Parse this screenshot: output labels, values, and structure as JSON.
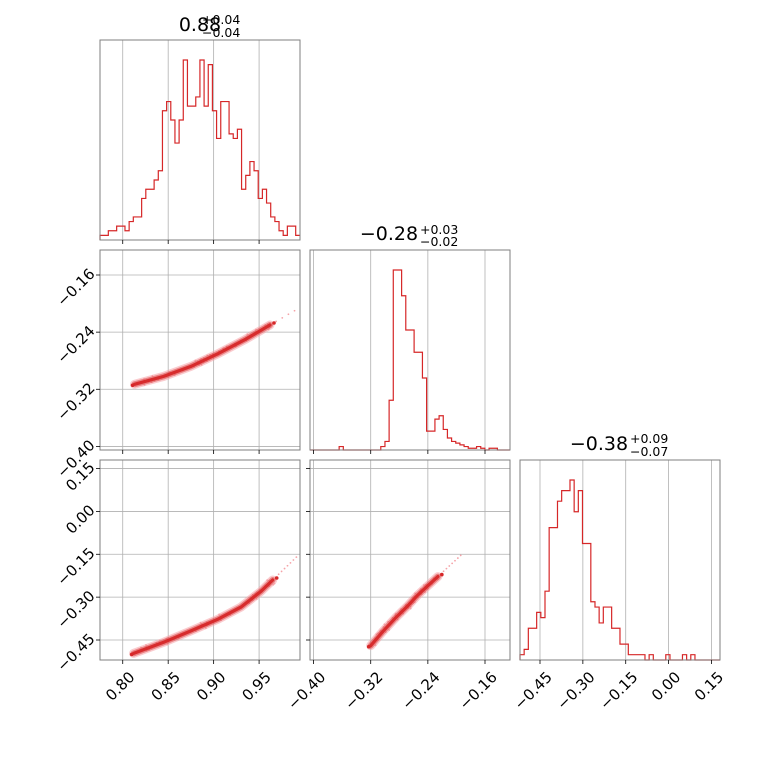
{
  "colors": {
    "series": "#d62728",
    "light": "#f5a3a8",
    "frame": "#7f7f7f",
    "grid": "#b0b0b0"
  },
  "chart_data": {
    "type": "corner",
    "grid": true,
    "titles": [
      {
        "median": "0.88",
        "plus": "+0.04",
        "minus": "−0.04"
      },
      {
        "median": "−0.28",
        "plus": "+0.03",
        "minus": "−0.02"
      },
      {
        "median": "−0.38",
        "plus": "+0.09",
        "minus": "−0.07"
      }
    ],
    "params": [
      {
        "range": [
          0.775,
          0.995
        ],
        "ticks": [
          0.8,
          0.85,
          0.9,
          0.95
        ],
        "tick_labels": [
          "0.80",
          "0.85",
          "0.90",
          "0.95"
        ]
      },
      {
        "range": [
          -0.405,
          -0.125
        ],
        "ticks": [
          -0.4,
          -0.32,
          -0.24,
          -0.16
        ],
        "tick_labels": [
          "−0.40",
          "−0.32",
          "−0.24",
          "−0.16"
        ]
      },
      {
        "range": [
          -0.52,
          0.18
        ],
        "ticks": [
          -0.45,
          -0.3,
          -0.15,
          0.0,
          0.15
        ],
        "tick_labels": [
          "−0.45",
          "−0.30",
          "−0.15",
          "0.00",
          "0.15"
        ]
      }
    ],
    "histograms": [
      {
        "param": 0,
        "bin_start": 0.775,
        "bin_width": 0.00458,
        "counts": [
          1,
          1,
          2,
          2,
          3,
          3,
          2,
          4,
          5,
          5,
          9,
          11,
          11,
          13,
          15,
          28,
          30,
          26,
          21,
          26,
          39,
          29,
          29,
          31,
          39,
          29,
          38,
          28,
          22,
          30,
          30,
          23,
          22,
          24,
          11,
          14,
          17,
          15,
          9,
          11,
          8,
          5,
          4,
          2,
          1,
          3,
          3,
          1
        ]
      },
      {
        "param": 1,
        "bin_start": -0.405,
        "bin_width": 0.00583,
        "counts": [
          0,
          0,
          0,
          0,
          0,
          0,
          0,
          2,
          0,
          0,
          0,
          0,
          0,
          0,
          0,
          0,
          0,
          2,
          5,
          29,
          105,
          105,
          90,
          70,
          70,
          57,
          57,
          42,
          11,
          11,
          18,
          20,
          12,
          7,
          5,
          4,
          3,
          2,
          1,
          1,
          2,
          1,
          0,
          1,
          1,
          0,
          0,
          0
        ]
      },
      {
        "param": 2,
        "bin_start": -0.52,
        "bin_width": 0.01458,
        "counts": [
          1,
          2,
          6,
          6,
          9,
          8,
          13,
          25,
          25,
          30,
          32,
          32,
          34,
          28,
          32,
          22,
          22,
          11,
          10,
          7,
          10,
          10,
          6,
          6,
          3,
          3,
          1,
          1,
          1,
          1,
          0,
          1,
          0,
          0,
          0,
          1,
          0,
          0,
          0,
          1,
          0,
          1,
          0,
          0,
          0,
          0,
          0,
          0
        ]
      }
    ],
    "scatter_panels": [
      {
        "x_param": 0,
        "y_param": 1,
        "curve": [
          [
            0.813,
            -0.313
          ],
          [
            0.845,
            -0.302
          ],
          [
            0.875,
            -0.288
          ],
          [
            0.905,
            -0.27
          ],
          [
            0.935,
            -0.25
          ],
          [
            0.962,
            -0.23
          ]
        ]
      },
      {
        "x_param": 0,
        "y_param": 2,
        "curve": [
          [
            0.812,
            -0.497
          ],
          [
            0.845,
            -0.458
          ],
          [
            0.875,
            -0.418
          ],
          [
            0.905,
            -0.377
          ],
          [
            0.93,
            -0.335
          ],
          [
            0.952,
            -0.28
          ],
          [
            0.965,
            -0.24
          ]
        ]
      },
      {
        "x_param": 1,
        "y_param": 2,
        "curve": [
          [
            -0.32,
            -0.47
          ],
          [
            -0.303,
            -0.42
          ],
          [
            -0.285,
            -0.372
          ],
          [
            -0.268,
            -0.33
          ],
          [
            -0.255,
            -0.295
          ],
          [
            -0.242,
            -0.265
          ],
          [
            -0.226,
            -0.228
          ]
        ]
      }
    ]
  }
}
